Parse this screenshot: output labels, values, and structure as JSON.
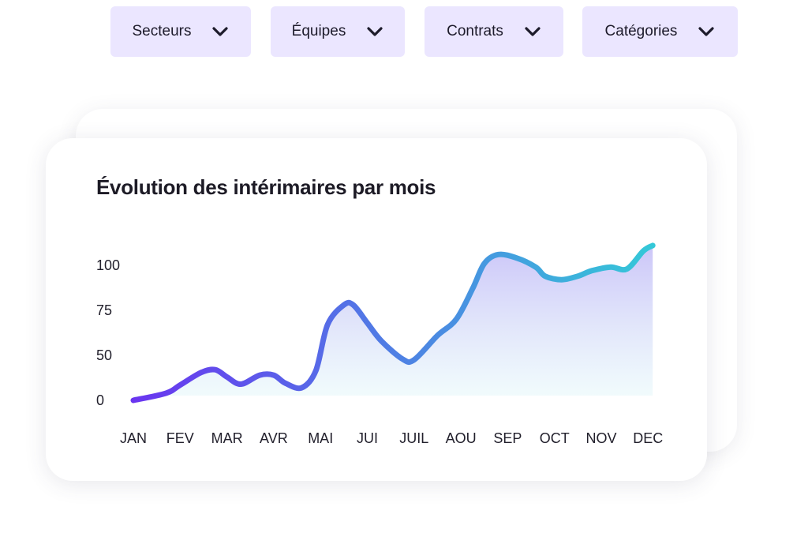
{
  "filters": [
    {
      "label": "Secteurs",
      "icon": "chevron-down-icon"
    },
    {
      "label": "Équipes",
      "icon": "chevron-down-icon"
    },
    {
      "label": "Contrats",
      "icon": "chevron-down-icon"
    },
    {
      "label": "Catégories",
      "icon": "chevron-down-icon"
    }
  ],
  "colors": {
    "filter_bg": "#ebe6ff",
    "line_start": "#6a35f0",
    "line_end": "#34c8d8",
    "area_top": "#c9c3f8",
    "area_bottom": "#ecfbfb"
  },
  "chart_data": {
    "type": "area",
    "title": "Évolution des intérimaires par mois",
    "xlabel": "",
    "ylabel": "",
    "categories": [
      "JAN",
      "FEV",
      "MAR",
      "AVR",
      "MAI",
      "JUI",
      "JUIL",
      "AOU",
      "SEP",
      "OCT",
      "NOV",
      "DEC"
    ],
    "y_ticks": [
      0,
      50,
      75,
      100
    ],
    "ylim": [
      0,
      120
    ],
    "grid": false,
    "legend": "none",
    "series": [
      {
        "x": [
          0,
          0.7,
          1,
          1.45,
          1.75,
          2,
          2.3,
          2.7,
          3,
          3.25,
          3.6,
          3.9,
          4.15,
          4.5,
          4.7,
          5,
          5.3,
          5.75,
          6,
          6.5,
          6.9,
          7.25,
          7.5,
          7.8,
          8.2,
          8.6,
          8.8,
          9.15,
          9.5,
          9.8,
          10.2,
          10.55,
          10.9,
          11.1
        ],
        "values": [
          0,
          8,
          17,
          31,
          34,
          26,
          18,
          28,
          28,
          19,
          14,
          33,
          67,
          78,
          78,
          68,
          58,
          46,
          45,
          61,
          70,
          87,
          101,
          106,
          104,
          99,
          94,
          92,
          94,
          97,
          99,
          98,
          108,
          111
        ]
      }
    ]
  }
}
